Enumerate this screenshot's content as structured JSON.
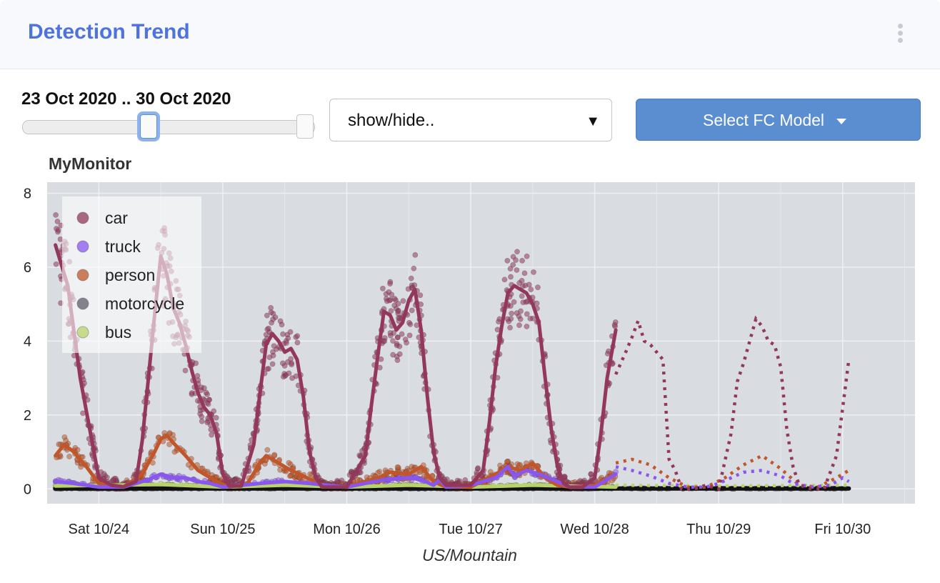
{
  "header": {
    "title": "Detection Trend",
    "menu_icon": "kebab-icon"
  },
  "controls": {
    "range_label": "23 Oct 2020 .. 30 Oct 2020",
    "slider_selection": {
      "start": "23 Oct 2020",
      "end": "30 Oct 2020",
      "start_fraction": 0.43,
      "end_fraction": 1.0
    },
    "select_text": "show/hide..",
    "select_caret": "▼",
    "fc_button_label": "Select FC Model",
    "fc_accent": "#5a8ed0"
  },
  "chart_data": {
    "type": "line",
    "title": "MyMonitor",
    "xlabel": "US/Mountain",
    "ylabel": "",
    "x_unit": "days",
    "xlim": [
      "2020-10-23 14:00",
      "2020-10-30 14:00"
    ],
    "ylim": [
      -0.4,
      8.3
    ],
    "yticks": [
      0,
      2,
      4,
      6,
      8
    ],
    "xticks": [
      {
        "label": "Sat 10/24",
        "x": "2020-10-24"
      },
      {
        "label": "Sun 10/25",
        "x": "2020-10-25"
      },
      {
        "label": "Mon 10/26",
        "x": "2020-10-26"
      },
      {
        "label": "Tue 10/27",
        "x": "2020-10-27"
      },
      {
        "label": "Wed 10/28",
        "x": "2020-10-28"
      },
      {
        "label": "Thu 10/29",
        "x": "2020-10-29"
      },
      {
        "label": "Fri 10/30",
        "x": "2020-10-30"
      }
    ],
    "grid": true,
    "legend_position": "top-left",
    "background": "#d9dce1",
    "forecast_start": "2020-10-28 10:00",
    "series": [
      {
        "name": "car",
        "color": "#93385a",
        "observed": [
          [
            -0.35,
            6.6
          ],
          [
            -0.25,
            5.5
          ],
          [
            -0.15,
            3.0
          ],
          [
            -0.05,
            1.2
          ],
          [
            0.0,
            0.3
          ],
          [
            0.1,
            0.1
          ],
          [
            0.2,
            0.06
          ],
          [
            0.3,
            0.2
          ],
          [
            0.35,
            1.3
          ],
          [
            0.4,
            3.0
          ],
          [
            0.45,
            4.7
          ],
          [
            0.5,
            6.3
          ],
          [
            0.55,
            5.8
          ],
          [
            0.6,
            4.9
          ],
          [
            0.65,
            4.5
          ],
          [
            0.7,
            3.9
          ],
          [
            0.75,
            3.2
          ],
          [
            0.8,
            2.6
          ],
          [
            0.85,
            2.2
          ],
          [
            0.9,
            2.0
          ],
          [
            0.95,
            1.5
          ],
          [
            1.0,
            0.4
          ],
          [
            1.05,
            0.08
          ],
          [
            1.15,
            0.08
          ],
          [
            1.25,
            1.2
          ],
          [
            1.3,
            2.6
          ],
          [
            1.35,
            3.9
          ],
          [
            1.4,
            4.2
          ],
          [
            1.45,
            4.0
          ],
          [
            1.5,
            3.7
          ],
          [
            1.55,
            3.8
          ],
          [
            1.6,
            3.5
          ],
          [
            1.65,
            2.5
          ],
          [
            1.7,
            1.0
          ],
          [
            1.75,
            0.3
          ],
          [
            1.8,
            0.05
          ],
          [
            2.0,
            0.05
          ],
          [
            2.15,
            0.9
          ],
          [
            2.2,
            2.3
          ],
          [
            2.25,
            3.6
          ],
          [
            2.3,
            4.8
          ],
          [
            2.35,
            4.7
          ],
          [
            2.4,
            4.3
          ],
          [
            2.45,
            4.5
          ],
          [
            2.5,
            5.1
          ],
          [
            2.55,
            5.4
          ],
          [
            2.6,
            4.3
          ],
          [
            2.65,
            2.5
          ],
          [
            2.7,
            1.0
          ],
          [
            2.75,
            0.3
          ],
          [
            2.8,
            0.1
          ],
          [
            3.0,
            0.1
          ],
          [
            3.1,
            0.5
          ],
          [
            3.15,
            1.8
          ],
          [
            3.2,
            3.3
          ],
          [
            3.25,
            4.4
          ],
          [
            3.3,
            5.3
          ],
          [
            3.35,
            5.5
          ],
          [
            3.4,
            5.4
          ],
          [
            3.45,
            5.3
          ],
          [
            3.5,
            5.0
          ],
          [
            3.55,
            4.5
          ],
          [
            3.6,
            3.0
          ],
          [
            3.65,
            1.6
          ],
          [
            3.7,
            0.6
          ],
          [
            3.75,
            0.15
          ],
          [
            3.8,
            0.04
          ],
          [
            3.9,
            0.04
          ],
          [
            4.0,
            0.3
          ],
          [
            4.05,
            1.5
          ],
          [
            4.1,
            3.0
          ],
          [
            4.17,
            4.3
          ]
        ],
        "forecast": [
          [
            4.17,
            3.1
          ],
          [
            4.25,
            3.7
          ],
          [
            4.3,
            4.1
          ],
          [
            4.35,
            4.55
          ],
          [
            4.4,
            4.0
          ],
          [
            4.45,
            3.9
          ],
          [
            4.5,
            3.7
          ],
          [
            4.55,
            3.5
          ],
          [
            4.6,
            0.8
          ],
          [
            4.65,
            0.5
          ],
          [
            4.7,
            0.0
          ],
          [
            4.8,
            0.0
          ],
          [
            4.9,
            0.1
          ],
          [
            5.0,
            0.0
          ],
          [
            5.1,
            1.5
          ],
          [
            5.15,
            2.9
          ],
          [
            5.2,
            3.4
          ],
          [
            5.25,
            4.0
          ],
          [
            5.3,
            4.6
          ],
          [
            5.35,
            4.4
          ],
          [
            5.4,
            4.0
          ],
          [
            5.45,
            3.9
          ],
          [
            5.5,
            3.3
          ],
          [
            5.55,
            1.6
          ],
          [
            5.6,
            0.6
          ],
          [
            5.65,
            0.1
          ],
          [
            5.75,
            0.0
          ],
          [
            5.85,
            0.0
          ],
          [
            5.95,
            0.9
          ],
          [
            6.0,
            2.2
          ],
          [
            6.05,
            3.5
          ]
        ],
        "scatter_amplitude": 0.45
      },
      {
        "name": "truck",
        "color": "#8a56f0",
        "observed": [
          [
            -0.35,
            0.2
          ],
          [
            -0.2,
            0.15
          ],
          [
            0.0,
            0.05
          ],
          [
            0.2,
            0.05
          ],
          [
            0.4,
            0.25
          ],
          [
            0.5,
            0.4
          ],
          [
            0.6,
            0.3
          ],
          [
            0.7,
            0.3
          ],
          [
            0.8,
            0.2
          ],
          [
            0.9,
            0.15
          ],
          [
            1.0,
            0.05
          ],
          [
            1.3,
            0.15
          ],
          [
            1.5,
            0.2
          ],
          [
            1.7,
            0.15
          ],
          [
            2.0,
            0.05
          ],
          [
            2.3,
            0.25
          ],
          [
            2.5,
            0.3
          ],
          [
            2.6,
            0.25
          ],
          [
            2.7,
            0.1
          ],
          [
            2.75,
            0.25
          ],
          [
            2.8,
            0.05
          ],
          [
            3.0,
            0.1
          ],
          [
            3.2,
            0.3
          ],
          [
            3.3,
            0.6
          ],
          [
            3.35,
            0.35
          ],
          [
            3.45,
            0.5
          ],
          [
            3.55,
            0.4
          ],
          [
            3.7,
            0.2
          ],
          [
            3.8,
            0.05
          ],
          [
            4.0,
            0.05
          ],
          [
            4.17,
            0.4
          ]
        ],
        "forecast": [
          [
            4.17,
            0.6
          ],
          [
            4.3,
            0.5
          ],
          [
            4.45,
            0.35
          ],
          [
            4.6,
            0.15
          ],
          [
            4.75,
            0.05
          ],
          [
            4.9,
            0.05
          ],
          [
            5.0,
            0.15
          ],
          [
            5.2,
            0.45
          ],
          [
            5.35,
            0.5
          ],
          [
            5.5,
            0.35
          ],
          [
            5.6,
            0.15
          ],
          [
            5.75,
            0.05
          ],
          [
            5.9,
            0.1
          ],
          [
            6.0,
            0.3
          ],
          [
            6.05,
            0.2
          ]
        ],
        "scatter_amplitude": 0.12
      },
      {
        "name": "person",
        "color": "#c0562a",
        "observed": [
          [
            -0.35,
            0.9
          ],
          [
            -0.28,
            1.2
          ],
          [
            -0.2,
            1.0
          ],
          [
            -0.1,
            0.6
          ],
          [
            0.0,
            0.15
          ],
          [
            0.2,
            0.05
          ],
          [
            0.35,
            0.4
          ],
          [
            0.45,
            1.0
          ],
          [
            0.5,
            1.35
          ],
          [
            0.55,
            1.45
          ],
          [
            0.6,
            1.25
          ],
          [
            0.7,
            0.9
          ],
          [
            0.8,
            0.5
          ],
          [
            0.95,
            0.2
          ],
          [
            1.05,
            0.05
          ],
          [
            1.2,
            0.15
          ],
          [
            1.3,
            0.7
          ],
          [
            1.35,
            0.9
          ],
          [
            1.45,
            0.7
          ],
          [
            1.55,
            0.5
          ],
          [
            1.65,
            0.35
          ],
          [
            1.8,
            0.1
          ],
          [
            2.0,
            0.05
          ],
          [
            2.25,
            0.3
          ],
          [
            2.35,
            0.45
          ],
          [
            2.5,
            0.4
          ],
          [
            2.6,
            0.6
          ],
          [
            2.7,
            0.2
          ],
          [
            2.8,
            0.05
          ],
          [
            3.0,
            0.05
          ],
          [
            3.2,
            0.4
          ],
          [
            3.3,
            0.6
          ],
          [
            3.4,
            0.5
          ],
          [
            3.5,
            0.7
          ],
          [
            3.6,
            0.3
          ],
          [
            3.7,
            0.1
          ],
          [
            3.8,
            0.05
          ],
          [
            4.0,
            0.1
          ],
          [
            4.17,
            0.4
          ]
        ],
        "forecast": [
          [
            4.17,
            0.7
          ],
          [
            4.3,
            0.8
          ],
          [
            4.45,
            0.65
          ],
          [
            4.6,
            0.3
          ],
          [
            4.75,
            0.05
          ],
          [
            4.9,
            0.05
          ],
          [
            5.05,
            0.3
          ],
          [
            5.2,
            0.65
          ],
          [
            5.35,
            0.9
          ],
          [
            5.5,
            0.55
          ],
          [
            5.65,
            0.1
          ],
          [
            5.8,
            0.05
          ],
          [
            5.95,
            0.3
          ],
          [
            6.05,
            0.5
          ]
        ],
        "scatter_amplitude": 0.3
      },
      {
        "name": "motorcycle",
        "color": "#5f5c6a",
        "observed": [
          [
            -0.35,
            0.01
          ],
          [
            6.05,
            0.01
          ]
        ],
        "forecast": [
          [
            4.17,
            0.01
          ],
          [
            6.05,
            0.01
          ]
        ],
        "scatter_amplitude": 0.02
      },
      {
        "name": "bus",
        "color": "#b9d36b",
        "observed": [
          [
            -0.35,
            0.08
          ],
          [
            0.5,
            0.12
          ],
          [
            1.0,
            0.05
          ],
          [
            1.5,
            0.1
          ],
          [
            2.0,
            0.05
          ],
          [
            2.5,
            0.1
          ],
          [
            3.0,
            0.05
          ],
          [
            3.5,
            0.1
          ],
          [
            4.17,
            0.05
          ]
        ],
        "forecast": [
          [
            4.17,
            0.1
          ],
          [
            5.0,
            0.08
          ],
          [
            6.05,
            0.1
          ]
        ],
        "scatter_amplitude": 0.05
      }
    ]
  }
}
